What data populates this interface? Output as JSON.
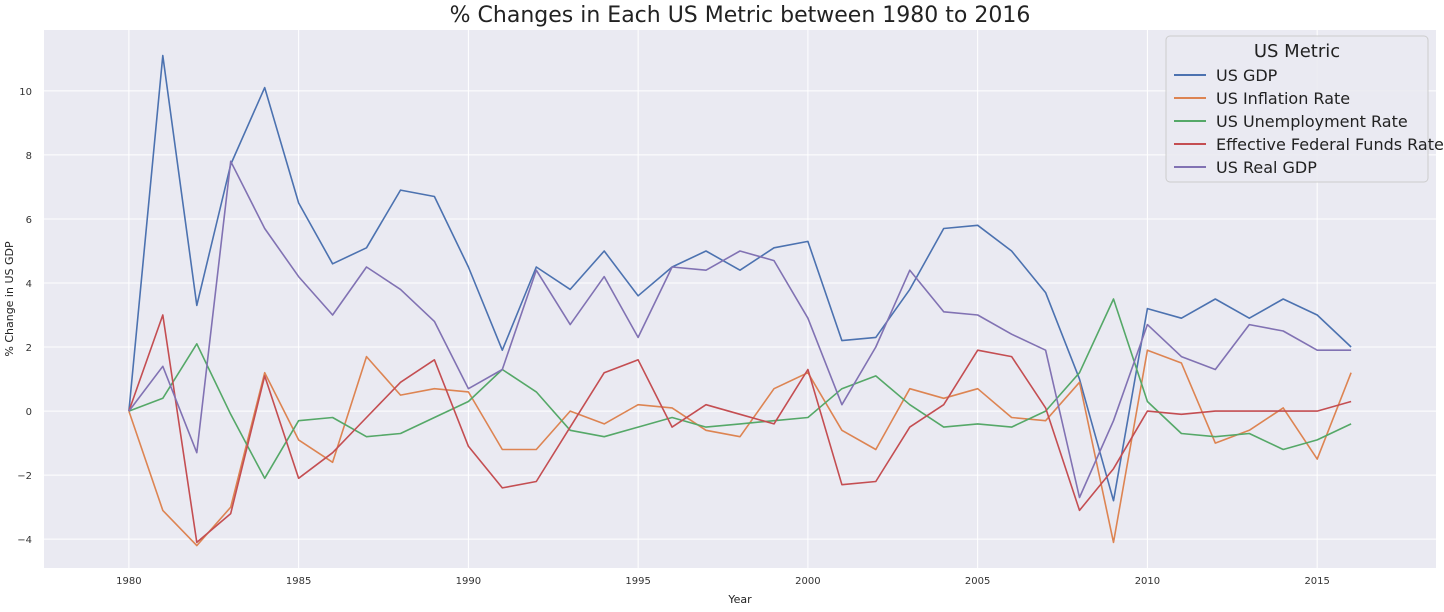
{
  "chart_data": {
    "type": "line",
    "title": "% Changes in Each US Metric between 1980 to 2016",
    "xlabel": "Year",
    "ylabel": "% Change in US GDP",
    "xlim": [
      1977.5,
      2018.5
    ],
    "ylim": [
      -4.9,
      11.9
    ],
    "x_ticks": [
      1980,
      1985,
      1990,
      1995,
      2000,
      2005,
      2010,
      2015
    ],
    "y_ticks": [
      -4,
      -2,
      0,
      2,
      4,
      6,
      8,
      10
    ],
    "x_tick_labels": [
      "1980",
      "1985",
      "1990",
      "1995",
      "2000",
      "2005",
      "2010",
      "2015"
    ],
    "y_tick_labels": [
      "−4",
      "−2",
      "0",
      "2",
      "4",
      "6",
      "8",
      "10"
    ],
    "grid": true,
    "background_color": "#eaeaf2",
    "grid_color": "#ffffff",
    "legend_title": "US Metric",
    "legend_position": "top-right",
    "x": [
      1980,
      1981,
      1982,
      1983,
      1984,
      1985,
      1986,
      1987,
      1988,
      1989,
      1990,
      1991,
      1992,
      1993,
      1994,
      1995,
      1996,
      1997,
      1998,
      1999,
      2000,
      2001,
      2002,
      2003,
      2004,
      2005,
      2006,
      2007,
      2008,
      2009,
      2010,
      2011,
      2012,
      2013,
      2014,
      2015,
      2016
    ],
    "series": [
      {
        "name": "US GDP",
        "color": "#4c72b0",
        "values": [
          0,
          11.1,
          3.3,
          7.7,
          10.1,
          6.5,
          4.6,
          5.1,
          6.9,
          6.7,
          4.5,
          1.9,
          4.5,
          3.8,
          5.0,
          3.6,
          4.5,
          5.0,
          4.4,
          5.1,
          5.3,
          2.2,
          2.3,
          3.8,
          5.7,
          5.8,
          5.0,
          3.7,
          1.0,
          -2.8,
          3.2,
          2.9,
          3.5,
          2.9,
          3.5,
          3.0,
          2.0
        ]
      },
      {
        "name": "US Inflation Rate",
        "color": "#dd8452",
        "values": [
          0,
          -3.1,
          -4.2,
          -3.0,
          1.2,
          -0.9,
          -1.6,
          1.7,
          0.5,
          0.7,
          0.6,
          -1.2,
          -1.2,
          0.0,
          -0.4,
          0.2,
          0.1,
          -0.6,
          -0.8,
          0.7,
          1.2,
          -0.6,
          -1.2,
          0.7,
          0.4,
          0.7,
          -0.2,
          -0.3,
          0.9,
          -4.1,
          1.9,
          1.5,
          -1.0,
          -0.6,
          0.1,
          -1.5,
          1.2
        ]
      },
      {
        "name": "US Unemployment Rate",
        "color": "#55a868",
        "values": [
          0,
          0.4,
          2.1,
          -0.1,
          -2.1,
          -0.3,
          -0.2,
          -0.8,
          -0.7,
          -0.2,
          0.3,
          1.3,
          0.6,
          -0.6,
          -0.8,
          -0.5,
          -0.2,
          -0.5,
          -0.4,
          -0.3,
          -0.2,
          0.7,
          1.1,
          0.2,
          -0.5,
          -0.4,
          -0.5,
          0.0,
          1.2,
          3.5,
          0.3,
          -0.7,
          -0.8,
          -0.7,
          -1.2,
          -0.9,
          -0.4
        ]
      },
      {
        "name": "Effective Federal Funds Rate",
        "color": "#c44e52",
        "values": [
          0,
          3.0,
          -4.1,
          -3.2,
          1.1,
          -2.1,
          -1.3,
          -0.2,
          0.9,
          1.6,
          -1.1,
          -2.4,
          -2.2,
          -0.5,
          1.2,
          1.6,
          -0.5,
          0.2,
          -0.1,
          -0.4,
          1.3,
          -2.3,
          -2.2,
          -0.5,
          0.2,
          1.9,
          1.7,
          0.1,
          -3.1,
          -1.8,
          0.0,
          -0.1,
          0.0,
          0.0,
          0.0,
          0.0,
          0.3
        ]
      },
      {
        "name": "US Real GDP",
        "color": "#8172b3",
        "values": [
          0,
          1.4,
          -1.3,
          7.8,
          5.7,
          4.2,
          3.0,
          4.5,
          3.8,
          2.8,
          0.7,
          1.3,
          4.4,
          2.7,
          4.2,
          2.3,
          4.5,
          4.4,
          5.0,
          4.7,
          2.9,
          0.2,
          2.0,
          4.4,
          3.1,
          3.0,
          2.4,
          1.9,
          -2.7,
          -0.3,
          2.7,
          1.7,
          1.3,
          2.7,
          2.5,
          1.9,
          1.9
        ]
      }
    ]
  }
}
